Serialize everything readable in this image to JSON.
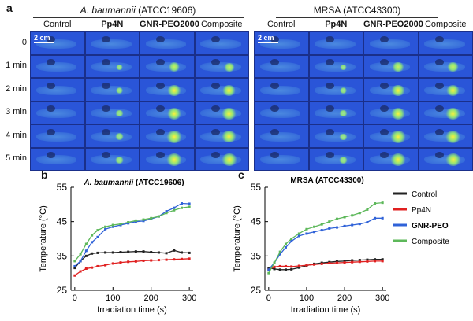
{
  "panels": {
    "a": "a",
    "b": "b",
    "c": "c"
  },
  "groups": [
    {
      "name_italic": "A. baumannii",
      "name_rest": " (ATCC19606)"
    },
    {
      "name_italic": "",
      "name_rest": "MRSA (ATCC43300)"
    }
  ],
  "columns": [
    {
      "label": "Control",
      "bold": false
    },
    {
      "label": "Pp4N",
      "bold": true
    },
    {
      "label": "GNR-PEO2000",
      "bold": true
    },
    {
      "label": "Composite",
      "bold": false
    }
  ],
  "rows": [
    "0",
    "1 min",
    "2 min",
    "3 min",
    "4 min",
    "5 min"
  ],
  "scale_bar": "2 cm",
  "heat_levels": {
    "baumannii": [
      [
        0,
        0,
        0,
        0
      ],
      [
        0,
        0.1,
        0.55,
        0.5
      ],
      [
        0,
        0.15,
        0.8,
        0.75
      ],
      [
        0,
        0.2,
        0.9,
        0.85
      ],
      [
        0,
        0.25,
        0.95,
        0.9
      ],
      [
        0,
        0.3,
        1.0,
        1.0
      ]
    ],
    "mrsa": [
      [
        0,
        0,
        0,
        0
      ],
      [
        0,
        0.1,
        0.6,
        0.55
      ],
      [
        0,
        0.15,
        0.8,
        0.8
      ],
      [
        0,
        0.2,
        0.9,
        0.9
      ],
      [
        0,
        0.2,
        0.95,
        0.95
      ],
      [
        0,
        0.25,
        1.0,
        1.0
      ]
    ]
  },
  "colors": {
    "Control": "#222222",
    "Pp4N": "#e02020",
    "GNR-PEO": "#2f62d8",
    "Composite": "#5db85a"
  },
  "legend": [
    {
      "name": "Control",
      "bold": false
    },
    {
      "name": "Pp4N",
      "bold": false
    },
    {
      "name": "GNR-PEO",
      "bold": true
    },
    {
      "name": "Composite",
      "bold": false
    }
  ],
  "chart_data": [
    {
      "type": "line",
      "title": "A. baumannii (ATCC19606)",
      "xlabel": "Irradiation time (s)",
      "ylabel": "Temperature (°C)",
      "xlim": [
        -10,
        310
      ],
      "ylim": [
        25,
        55
      ],
      "xticks": [
        0,
        100,
        200,
        300
      ],
      "yticks": [
        25,
        35,
        45,
        55
      ],
      "series": [
        {
          "name": "Control",
          "x": [
            0,
            15,
            30,
            45,
            60,
            80,
            100,
            120,
            140,
            160,
            180,
            200,
            220,
            240,
            260,
            280,
            300
          ],
          "y": [
            31.5,
            33.5,
            35,
            35.7,
            35.9,
            36,
            36,
            36.1,
            36.2,
            36.3,
            36.3,
            36.1,
            36,
            35.8,
            36.6,
            36,
            35.9
          ]
        },
        {
          "name": "Pp4N",
          "x": [
            0,
            15,
            30,
            45,
            60,
            80,
            100,
            120,
            140,
            160,
            180,
            200,
            220,
            240,
            260,
            280,
            300
          ],
          "y": [
            29.3,
            30.5,
            31.3,
            31.6,
            32,
            32.3,
            32.8,
            33.1,
            33.3,
            33.4,
            33.6,
            33.7,
            33.8,
            33.9,
            34,
            34.1,
            34.2
          ]
        },
        {
          "name": "GNR-PEO",
          "x": [
            0,
            15,
            30,
            45,
            60,
            80,
            100,
            120,
            140,
            160,
            180,
            200,
            220,
            240,
            260,
            280,
            300
          ],
          "y": [
            32,
            33.5,
            36.5,
            39,
            40.5,
            42.8,
            43.5,
            44,
            44.5,
            45,
            45.2,
            45.8,
            46.5,
            48,
            49,
            50.3,
            50.2
          ]
        },
        {
          "name": "Composite",
          "x": [
            0,
            15,
            30,
            45,
            60,
            80,
            100,
            120,
            140,
            160,
            180,
            200,
            220,
            240,
            260,
            280,
            300
          ],
          "y": [
            33.5,
            35.5,
            38.5,
            41,
            42.5,
            43.5,
            44,
            44.3,
            44.8,
            45.3,
            45.6,
            46,
            46.5,
            47.5,
            48.3,
            49,
            49.3
          ]
        }
      ]
    },
    {
      "type": "line",
      "title": "MRSA (ATCC43300)",
      "xlabel": "Irradiation time (s)",
      "ylabel": "Temperature (°C)",
      "xlim": [
        -10,
        310
      ],
      "ylim": [
        25,
        55
      ],
      "xticks": [
        0,
        100,
        200,
        300
      ],
      "yticks": [
        25,
        35,
        45,
        55
      ],
      "series": [
        {
          "name": "Control",
          "x": [
            0,
            15,
            30,
            45,
            60,
            80,
            100,
            120,
            140,
            160,
            180,
            200,
            220,
            240,
            260,
            280,
            300
          ],
          "y": [
            31.5,
            31.2,
            31,
            31,
            31.1,
            31.6,
            32.2,
            32.7,
            33,
            33.2,
            33.4,
            33.5,
            33.7,
            33.8,
            33.9,
            34,
            34
          ]
        },
        {
          "name": "Pp4N",
          "x": [
            0,
            15,
            30,
            45,
            60,
            80,
            100,
            120,
            140,
            160,
            180,
            200,
            220,
            240,
            260,
            280,
            300
          ],
          "y": [
            31,
            31.8,
            32,
            32,
            31.9,
            32.1,
            32.3,
            32.5,
            32.7,
            32.9,
            33,
            33.1,
            33.2,
            33.3,
            33.4,
            33.5,
            33.5
          ]
        },
        {
          "name": "GNR-PEO",
          "x": [
            0,
            15,
            30,
            45,
            60,
            80,
            100,
            120,
            140,
            160,
            180,
            200,
            220,
            240,
            260,
            280,
            300
          ],
          "y": [
            31,
            33,
            35.5,
            37.5,
            39.3,
            40.8,
            41.5,
            42,
            42.5,
            43,
            43.3,
            43.7,
            44,
            44.3,
            44.8,
            46,
            46
          ]
        },
        {
          "name": "Composite",
          "x": [
            0,
            15,
            30,
            45,
            60,
            80,
            100,
            120,
            140,
            160,
            180,
            200,
            220,
            240,
            260,
            280,
            300
          ],
          "y": [
            30,
            33,
            36.2,
            38.5,
            40,
            41.5,
            42.8,
            43.5,
            44.2,
            45,
            45.8,
            46.3,
            46.8,
            47.5,
            48.5,
            50.3,
            50.5
          ]
        }
      ]
    }
  ]
}
